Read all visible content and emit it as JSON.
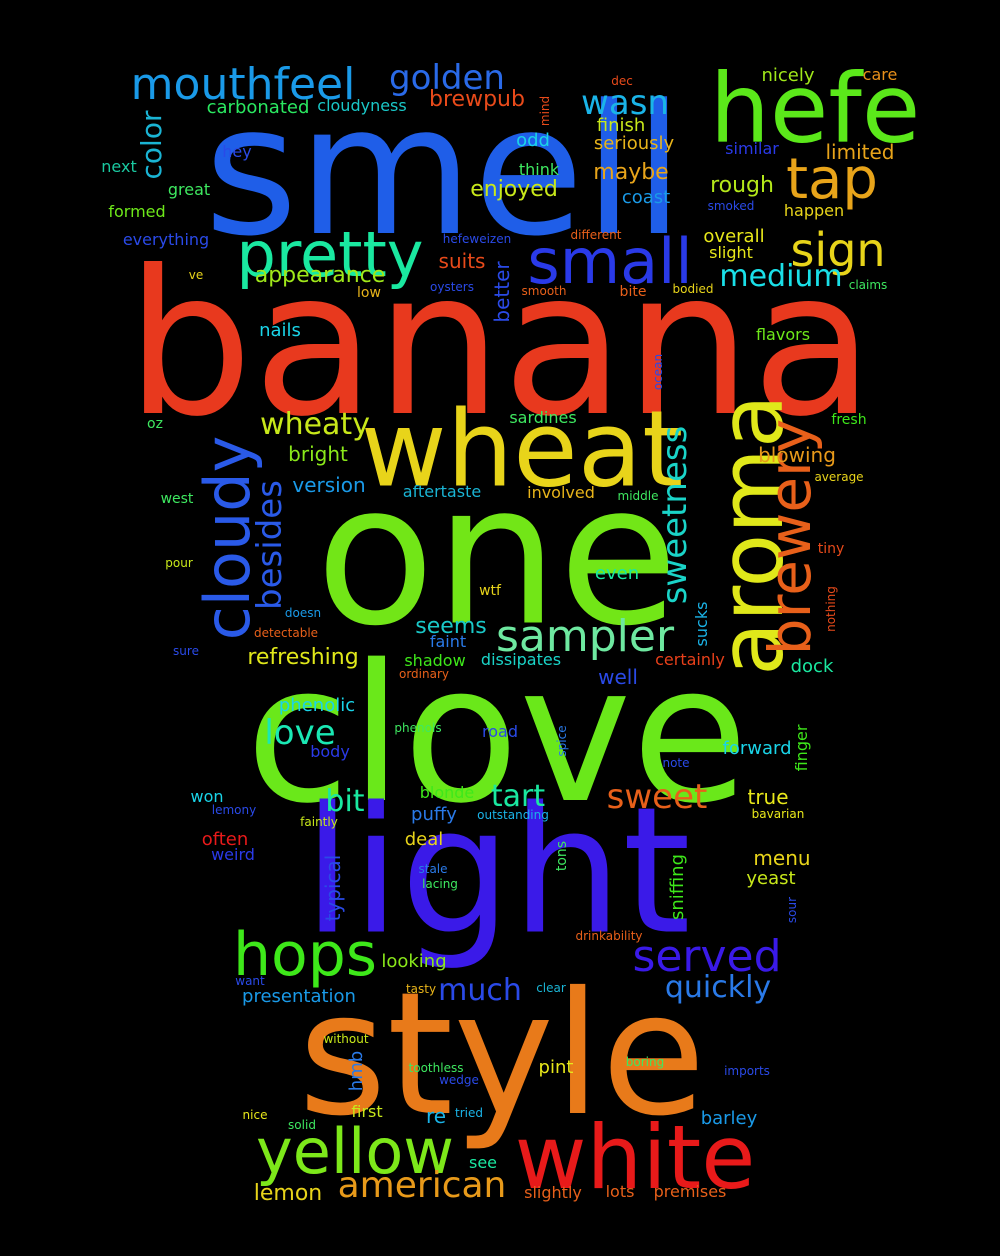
{
  "background": "#000000",
  "words": [
    {
      "text": "banana",
      "color": "#e8391e"
    },
    {
      "text": "smell",
      "color": "#1f5ee8"
    },
    {
      "text": "clove",
      "color": "#6ae81a"
    },
    {
      "text": "one",
      "color": "#72e617"
    },
    {
      "text": "light",
      "color": "#3a1ae8"
    },
    {
      "text": "style",
      "color": "#e87a1a"
    },
    {
      "text": "wheat",
      "color": "#e8d41a"
    },
    {
      "text": "hefe",
      "color": "#5be81a"
    },
    {
      "text": "white",
      "color": "#e81a1a"
    },
    {
      "text": "aroma",
      "color": "#e0e81a"
    },
    {
      "text": "pretty",
      "color": "#1ae8a0"
    },
    {
      "text": "small",
      "color": "#2a3ae8"
    },
    {
      "text": "yellow",
      "color": "#7de81a"
    },
    {
      "text": "cloudy",
      "color": "#2a5ae8"
    },
    {
      "text": "brewery",
      "color": "#e8601a"
    },
    {
      "text": "hops",
      "color": "#3ee81a"
    },
    {
      "text": "mouthfeel",
      "color": "#1a9ae8"
    },
    {
      "text": "tap",
      "color": "#e8a41a"
    },
    {
      "text": "sampler",
      "color": "#6ee8a0"
    },
    {
      "text": "served",
      "color": "#3a1ae8"
    },
    {
      "text": "sign",
      "color": "#e8d41a"
    },
    {
      "text": "american",
      "color": "#e89a1a"
    },
    {
      "text": "sweetness",
      "color": "#1ad4c8"
    },
    {
      "text": "besides",
      "color": "#2a5ae8"
    },
    {
      "text": "golden",
      "color": "#2a6ae8"
    },
    {
      "text": "wasn",
      "color": "#1ab4e8"
    },
    {
      "text": "sweet",
      "color": "#e8601a"
    },
    {
      "text": "medium",
      "color": "#1ae0e8"
    },
    {
      "text": "love",
      "color": "#1ae8b4"
    },
    {
      "text": "wheaty",
      "color": "#c8e81a"
    },
    {
      "text": "quickly",
      "color": "#2a7ae8"
    },
    {
      "text": "much",
      "color": "#2a4ae8"
    },
    {
      "text": "appearance",
      "color": "#a0e81a"
    },
    {
      "text": "color",
      "color": "#1ab4d4"
    },
    {
      "text": "bit",
      "color": "#1ae8a0"
    },
    {
      "text": "tart",
      "color": "#1ae8a0"
    },
    {
      "text": "lemon",
      "color": "#e8d41a"
    },
    {
      "text": "brewpub",
      "color": "#e84a1a"
    },
    {
      "text": "maybe",
      "color": "#e8a41a"
    },
    {
      "text": "rough",
      "color": "#b4e81a"
    },
    {
      "text": "enjoyed",
      "color": "#c8e81a"
    },
    {
      "text": "refreshing",
      "color": "#e0e81a"
    },
    {
      "text": "seems",
      "color": "#1ac8c8"
    },
    {
      "text": "suits",
      "color": "#e84a1a"
    },
    {
      "text": "bright",
      "color": "#8ae81a"
    },
    {
      "text": "version",
      "color": "#1a9ae8"
    },
    {
      "text": "blowing",
      "color": "#e89a1a"
    },
    {
      "text": "menu",
      "color": "#e8d41a"
    },
    {
      "text": "finish",
      "color": "#c8e81a"
    },
    {
      "text": "seriously",
      "color": "#e8b41a"
    },
    {
      "text": "limited",
      "color": "#e8a41a"
    },
    {
      "text": "nicely",
      "color": "#a0e81a"
    },
    {
      "text": "care",
      "color": "#e8901a"
    },
    {
      "text": "carbonated",
      "color": "#2ae860"
    },
    {
      "text": "cloudyness",
      "color": "#1ac8c8"
    },
    {
      "text": "overall",
      "color": "#e8e81a"
    },
    {
      "text": "slight",
      "color": "#e8e81a"
    },
    {
      "text": "happen",
      "color": "#e8d41a"
    },
    {
      "text": "coast",
      "color": "#1a9ae8"
    },
    {
      "text": "odd",
      "color": "#1ad4e8"
    },
    {
      "text": "think",
      "color": "#3ee860"
    },
    {
      "text": "similar",
      "color": "#2a3ae8"
    },
    {
      "text": "true",
      "color": "#e8e81a"
    },
    {
      "text": "presentation",
      "color": "#1a9ae8"
    },
    {
      "text": "looking",
      "color": "#8ae81a"
    },
    {
      "text": "phenolic",
      "color": "#1ad4e8"
    },
    {
      "text": "well",
      "color": "#2a4ae8"
    },
    {
      "text": "certainly",
      "color": "#e8401a"
    },
    {
      "text": "dock",
      "color": "#1ae8a0"
    },
    {
      "text": "even",
      "color": "#1ae8a0"
    },
    {
      "text": "involved",
      "color": "#e8b41a"
    },
    {
      "text": "aftertaste",
      "color": "#1ab4d4"
    },
    {
      "text": "shadow",
      "color": "#3ee81a"
    },
    {
      "text": "dissipates",
      "color": "#1ad4c8"
    },
    {
      "text": "faint",
      "color": "#2a7ae8"
    },
    {
      "text": "nails",
      "color": "#1ad4e8"
    },
    {
      "text": "flavors",
      "color": "#6ee81a"
    },
    {
      "text": "forward",
      "color": "#1ad4e8"
    },
    {
      "text": "barley",
      "color": "#1a9ae8"
    },
    {
      "text": "yeast",
      "color": "#c8e81a"
    },
    {
      "text": "blonde",
      "color": "#3ee81a"
    },
    {
      "text": "puffy",
      "color": "#2a7ae8"
    },
    {
      "text": "deal",
      "color": "#e8d41a"
    },
    {
      "text": "body",
      "color": "#2a3ae8"
    },
    {
      "text": "won",
      "color": "#1ad4e8"
    },
    {
      "text": "often",
      "color": "#e81a1a"
    },
    {
      "text": "weird",
      "color": "#2a3ae8"
    },
    {
      "text": "first",
      "color": "#c8e81a"
    },
    {
      "text": "pint",
      "color": "#e8e81a"
    },
    {
      "text": "re",
      "color": "#1ab4e8"
    },
    {
      "text": "see",
      "color": "#1ae8a0"
    },
    {
      "text": "slightly",
      "color": "#e8601a"
    },
    {
      "text": "lots",
      "color": "#e8601a"
    },
    {
      "text": "premises",
      "color": "#e8601a"
    },
    {
      "text": "road",
      "color": "#2a4ae8"
    },
    {
      "text": "great",
      "color": "#3ee860"
    },
    {
      "text": "next",
      "color": "#1ac8a0"
    },
    {
      "text": "hey",
      "color": "#2a4ae8"
    },
    {
      "text": "formed",
      "color": "#6ee81a"
    },
    {
      "text": "everything",
      "color": "#2a4ae8"
    },
    {
      "text": "oz",
      "color": "#3ee860"
    },
    {
      "text": "west",
      "color": "#3ee860"
    },
    {
      "text": "pour",
      "color": "#c8e81a"
    },
    {
      "text": "sure",
      "color": "#2a4ae8"
    },
    {
      "text": "ve",
      "color": "#e8d41a"
    },
    {
      "text": "low",
      "color": "#e8b41a"
    },
    {
      "text": "oysters",
      "color": "#2a4ae8"
    },
    {
      "text": "smooth",
      "color": "#e8601a"
    },
    {
      "text": "bite",
      "color": "#e8601a"
    },
    {
      "text": "bodied",
      "color": "#e8d41a"
    },
    {
      "text": "claims",
      "color": "#3ee860"
    },
    {
      "text": "different",
      "color": "#e8601a"
    },
    {
      "text": "hefeweizen",
      "color": "#2a4ae8"
    },
    {
      "text": "smoked",
      "color": "#2a4ae8"
    },
    {
      "text": "dec",
      "color": "#e84a1a"
    },
    {
      "text": "sardines",
      "color": "#3ee860"
    },
    {
      "text": "fresh",
      "color": "#3ee81a"
    },
    {
      "text": "average",
      "color": "#e8d41a"
    },
    {
      "text": "middle",
      "color": "#3ee860"
    },
    {
      "text": "tiny",
      "color": "#e84a1a"
    },
    {
      "text": "doesn",
      "color": "#1a9ae8"
    },
    {
      "text": "detectable",
      "color": "#e8601a"
    },
    {
      "text": "wtf",
      "color": "#e8d41a"
    },
    {
      "text": "ordinary",
      "color": "#e8601a"
    },
    {
      "text": "phenols",
      "color": "#3ee860"
    },
    {
      "text": "note",
      "color": "#2a4ae8"
    },
    {
      "text": "lemony",
      "color": "#2a4ae8"
    },
    {
      "text": "faintly",
      "color": "#c8e81a"
    },
    {
      "text": "outstanding",
      "color": "#1ab4e8"
    },
    {
      "text": "bavarian",
      "color": "#e8e81a"
    },
    {
      "text": "stale",
      "color": "#2a7ae8"
    },
    {
      "text": "lacing",
      "color": "#3ee860"
    },
    {
      "text": "drinkability",
      "color": "#e8601a"
    },
    {
      "text": "want",
      "color": "#2a4ae8"
    },
    {
      "text": "tasty",
      "color": "#e8b41a"
    },
    {
      "text": "clear",
      "color": "#1ab4d4"
    },
    {
      "text": "without",
      "color": "#c8e81a"
    },
    {
      "text": "toothless",
      "color": "#3ee860"
    },
    {
      "text": "wedge",
      "color": "#2a4ae8"
    },
    {
      "text": "boring",
      "color": "#3ee860"
    },
    {
      "text": "imports",
      "color": "#2a4ae8"
    },
    {
      "text": "nice",
      "color": "#e8e81a"
    },
    {
      "text": "solid",
      "color": "#3ee860"
    },
    {
      "text": "tried",
      "color": "#1ab4e8"
    },
    {
      "text": "mind",
      "color": "#e84a1a"
    },
    {
      "text": "ocean",
      "color": "#2a4ae8"
    },
    {
      "text": "nothing",
      "color": "#e84a1a"
    },
    {
      "text": "sucks",
      "color": "#1ab4e8"
    },
    {
      "text": "spice",
      "color": "#2a7ae8"
    },
    {
      "text": "finger",
      "color": "#3ee81a"
    },
    {
      "text": "typical",
      "color": "#2a4ae8"
    },
    {
      "text": "hmb",
      "color": "#2a7ae8"
    },
    {
      "text": "tons",
      "color": "#3ee860"
    },
    {
      "text": "sniffing",
      "color": "#3ee81a"
    },
    {
      "text": "sour",
      "color": "#2a4ae8"
    },
    {
      "text": "better",
      "color": "#2a4ae8"
    }
  ]
}
